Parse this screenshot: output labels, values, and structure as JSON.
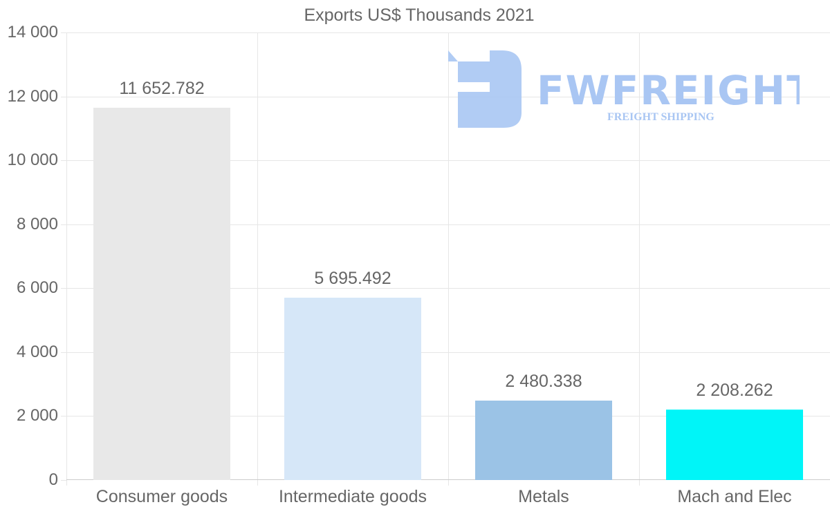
{
  "chart_data": {
    "type": "bar",
    "title": "Exports US$ Thousands 2021",
    "xlabel": "",
    "ylabel": "",
    "categories": [
      "Consumer goods",
      "Intermediate goods",
      "Metals",
      "Mach and Elec"
    ],
    "values": [
      11652.782,
      5695.492,
      2480.338,
      2208.262
    ],
    "value_labels": [
      "11 652.782",
      "5 695.492",
      "2 480.338",
      "2 208.262"
    ],
    "colors": [
      "#e8e8e8",
      "#d6e7f8",
      "#9bc3e6",
      "#00f5f8"
    ],
    "ylim": [
      0,
      14000
    ],
    "yticks": [
      0,
      2000,
      4000,
      6000,
      8000,
      10000,
      12000,
      14000
    ],
    "ytick_labels": [
      "0",
      "2 000",
      "4 000",
      "6 000",
      "8 000",
      "10 000",
      "12 000",
      "14 000"
    ],
    "grid": true,
    "legend": null
  },
  "watermark": {
    "brand": "FWFREIGHT",
    "tagline": "FREIGHT SHIPPING",
    "color": "#a9c6f3"
  }
}
